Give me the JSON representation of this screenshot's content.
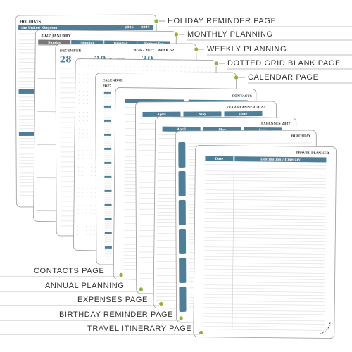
{
  "callouts": [
    "HOLIDAY REMINDER PAGE",
    "MONTHLY PLANNING",
    "WEEKLY PLANNING",
    "DOTTED GRID BLANK PAGE",
    "CALENDAR PAGE",
    "CONTACTS PAGE",
    "ANNUAL PLANNING",
    "EXPENSES PAGE",
    "BIRTHDAY REMINDER PAGE",
    "TRAVEL ITINERARY PAGE"
  ],
  "pages": {
    "holidays": {
      "title": "HOLIDAYS",
      "region": "the United Kingdom",
      "years": [
        "2026",
        "2027"
      ]
    },
    "monthly": {
      "title": "2027 JANUARY",
      "days": [
        "Sunday",
        "Monday",
        "Tuesday",
        "Wednesday"
      ]
    },
    "weekly": {
      "month": "DECEMBER",
      "week": "2026 - 2027 · WEEK 52",
      "dates": [
        "28",
        "29",
        "30"
      ],
      "day": "Tuesday"
    },
    "calendar": {
      "title": "CALENDAR",
      "year": "2027"
    },
    "contacts": {
      "title": "CONTACTS"
    },
    "annual": {
      "title": "YEAR PLANNER 2027",
      "months": [
        "April",
        "May",
        "June"
      ]
    },
    "expenses": {
      "title": "EXPENSES 2027",
      "months": [
        "April",
        "May",
        "June"
      ]
    },
    "birthday": {
      "title": "BIRTHDAY"
    },
    "travel": {
      "title": "TRAVEL PLANNER",
      "columns": [
        "Date",
        "Destination / Itinerary"
      ]
    }
  }
}
